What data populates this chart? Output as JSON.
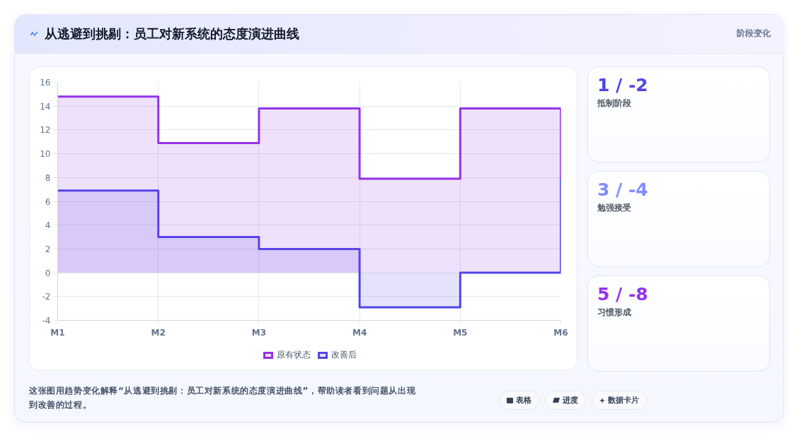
{
  "chart_data": [
    {
      "type": "area",
      "title": "从逃避到挑剔：员工对新系统的态度演进曲线",
      "categories": [
        "M1",
        "M2",
        "M3",
        "M4",
        "M5",
        "M6"
      ],
      "series": [
        {
          "name": "原有状态",
          "color": "#9333ea",
          "x": [
            "M1",
            "M2",
            "M2",
            "M3",
            "M3",
            "M4",
            "M4",
            "M5",
            "M5",
            "M6",
            "M6"
          ],
          "values": [
            14.8,
            14.8,
            10.9,
            10.9,
            13.8,
            13.8,
            7.9,
            7.9,
            13.8,
            13.8,
            7.9
          ]
        },
        {
          "name": "改善后",
          "color": "#4f46e5",
          "x": [
            "M1",
            "M2",
            "M2",
            "M3",
            "M3",
            "M4",
            "M4",
            "M5",
            "M5",
            "M6",
            "M6"
          ],
          "values": [
            6.9,
            6.9,
            3,
            3,
            2,
            2,
            -2.9,
            -2.9,
            0,
            0,
            7.9
          ]
        }
      ],
      "ylim": [
        -4,
        16
      ],
      "yticks": [
        -4,
        -2,
        0,
        2,
        4,
        6,
        8,
        10,
        12,
        14,
        16
      ],
      "grid": true,
      "legend": "bottom",
      "annotations": [
        "这张图用趋势变化解释“从逃避到挑剔：员工对新系统的态度演进曲线”，帮助读者看到问题从出现到改善的过程。",
        "表格",
        "进度",
        "数据卡片"
      ]
    },
    {
      "type": "other",
      "title": "阶段变化"
    },
    {
      "type": "other",
      "title": "1 / -2",
      "subtitle": "抵制阶段",
      "color": "#4f46e5"
    },
    {
      "type": "other",
      "title": "3 / -4",
      "subtitle": "勉强接受",
      "color": "#818cf8"
    },
    {
      "type": "other",
      "title": "5 / -8",
      "subtitle": "习惯形成",
      "color": "#9333ea"
    }
  ]
}
